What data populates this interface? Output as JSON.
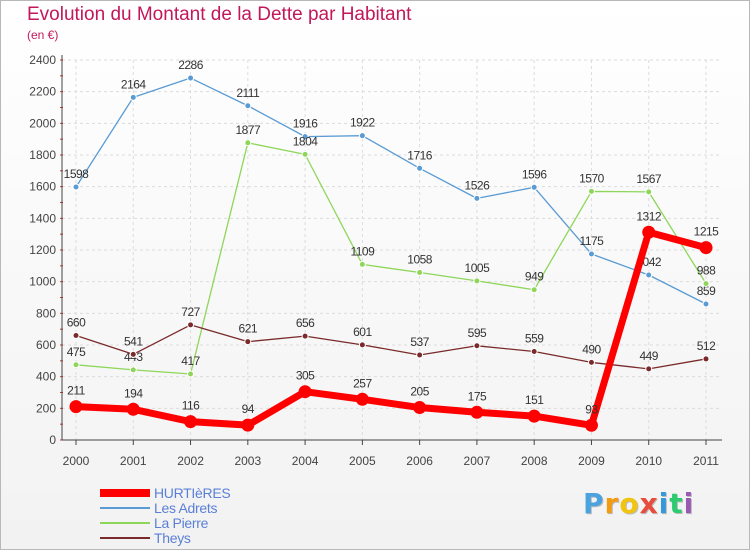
{
  "title": "Evolution du Montant de la Dette par Habitant",
  "unit": "(en €)",
  "logo": {
    "letters": [
      "P",
      "r",
      "o",
      "x",
      "i",
      "t",
      "i"
    ],
    "colors": [
      "#4aa3df",
      "#f39c12",
      "#f1c40f",
      "#e74c3c",
      "#3498db",
      "#2ecc71",
      "#9b59b6"
    ]
  },
  "chart_data": {
    "type": "line",
    "categories": [
      "2000",
      "2001",
      "2002",
      "2003",
      "2004",
      "2005",
      "2006",
      "2007",
      "2008",
      "2009",
      "2010",
      "2011"
    ],
    "ylim": [
      0,
      2400
    ],
    "yticks": [
      0,
      200,
      400,
      600,
      800,
      1000,
      1200,
      1400,
      1600,
      1800,
      2000,
      2200,
      2400
    ],
    "grid": true,
    "legend_position": "bottom-left",
    "series": [
      {
        "name": "Les Adrets",
        "color": "#5a9bd4",
        "width": 1.3,
        "values": [
          1598,
          2164,
          2286,
          2111,
          1916,
          1922,
          1716,
          1526,
          1596,
          1175,
          1042,
          859
        ]
      },
      {
        "name": "La Pierre",
        "color": "#8ed65a",
        "width": 1.3,
        "values": [
          475,
          443,
          417,
          1877,
          1804,
          1109,
          1058,
          1005,
          949,
          1570,
          1567,
          988
        ]
      },
      {
        "name": "Theys",
        "color": "#7a2a2a",
        "width": 1.3,
        "values": [
          660,
          541,
          727,
          621,
          656,
          601,
          537,
          595,
          559,
          490,
          449,
          512
        ]
      },
      {
        "name": "HURTIèRES",
        "color": "#ff0000",
        "width": 7,
        "values": [
          211,
          194,
          116,
          94,
          305,
          257,
          205,
          175,
          151,
          93,
          1312,
          1215
        ]
      }
    ],
    "legend_order": [
      "HURTIèRES",
      "Les Adrets",
      "La Pierre",
      "Theys"
    ]
  }
}
